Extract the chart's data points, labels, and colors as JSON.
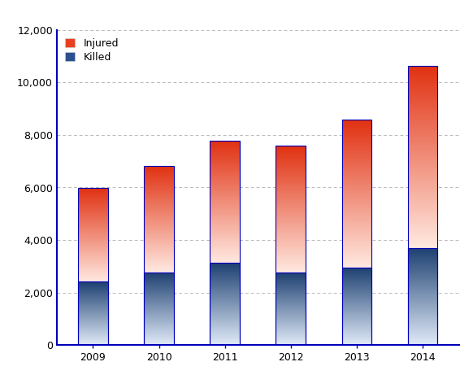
{
  "years": [
    "2009",
    "2010",
    "2011",
    "2012",
    "2013",
    "2014"
  ],
  "killed": [
    2412,
    2777,
    3133,
    2769,
    2959,
    3701
  ],
  "injured": [
    3566,
    4055,
    4654,
    4821,
    5614,
    6943
  ],
  "ylim": [
    0,
    12000
  ],
  "yticks": [
    0,
    2000,
    4000,
    6000,
    8000,
    10000,
    12000
  ],
  "bar_width": 0.45,
  "background_color": "#ffffff",
  "axis_color": "#0000bb",
  "grid_color": "#bbbbbb",
  "killed_top_color": "#1c3f70",
  "killed_bottom_color": "#e0eaf8",
  "injured_top_color": "#e03010",
  "injured_bottom_color": "#ffe8e0",
  "legend_injured_color": "#e84020",
  "legend_killed_color": "#2a5090",
  "figsize": [
    5.82,
    4.61
  ],
  "dpi": 100
}
